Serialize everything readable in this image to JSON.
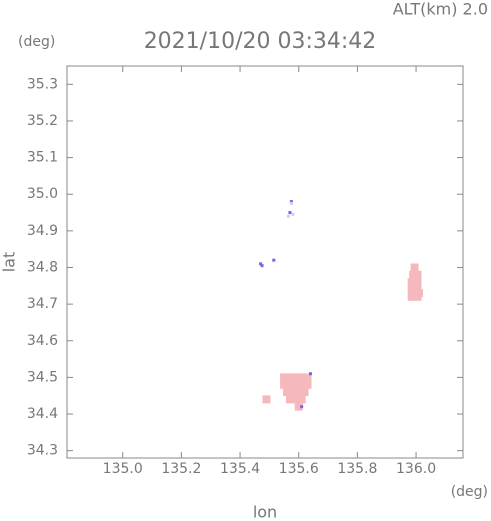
{
  "chart_data": {
    "type": "scatter",
    "title": "2021/10/20 03:34:42",
    "altitude_label": "ALT(km) 2.0",
    "y_unit": "(deg)",
    "x_unit": "(deg)",
    "xlabel": "lon",
    "ylabel": "lat",
    "xlim": [
      134.81,
      136.16
    ],
    "ylim": [
      34.28,
      35.35
    ],
    "xticks": [
      {
        "value": 135.0,
        "label": "135.0"
      },
      135.2,
      135.4,
      135.6,
      135.8,
      {
        "value": 136.0,
        "label": "136.0"
      }
    ],
    "yticks": [
      34.3,
      34.4,
      34.5,
      34.6,
      34.7,
      34.8,
      34.9,
      {
        "value": 35.0,
        "label": "35.0"
      },
      35.1,
      35.2,
      35.3
    ],
    "series": [
      {
        "color": "#f5b9bd",
        "x": [
          135.55,
          135.57,
          135.59,
          135.61,
          135.63,
          135.55,
          135.57,
          135.59,
          135.61,
          135.63,
          135.56,
          135.58,
          135.6,
          135.62,
          135.57,
          135.59,
          135.61,
          135.6,
          135.49,
          135.985,
          136.005,
          135.985,
          136.005,
          135.985,
          136.005,
          135.99,
          136.005,
          135.995,
          136.01
        ],
        "values": [
          34.5,
          34.5,
          34.5,
          34.5,
          34.5,
          34.48,
          34.48,
          34.48,
          34.48,
          34.48,
          34.46,
          34.46,
          34.46,
          34.46,
          34.44,
          34.44,
          34.44,
          34.42,
          34.44,
          34.72,
          34.72,
          34.74,
          34.74,
          34.76,
          34.76,
          34.78,
          34.78,
          34.8,
          34.73
        ]
      },
      {
        "color": "#6a6ae0",
        "x": [
          135.47,
          135.475,
          135.515,
          135.57,
          135.575,
          135.64,
          135.61
        ],
        "values": [
          34.81,
          34.805,
          34.82,
          34.95,
          34.98,
          34.51,
          34.42
        ]
      },
      {
        "color": "#cfcff5",
        "x": [
          135.565,
          135.58,
          135.575
        ],
        "values": [
          34.94,
          34.945,
          34.975
        ]
      }
    ]
  }
}
